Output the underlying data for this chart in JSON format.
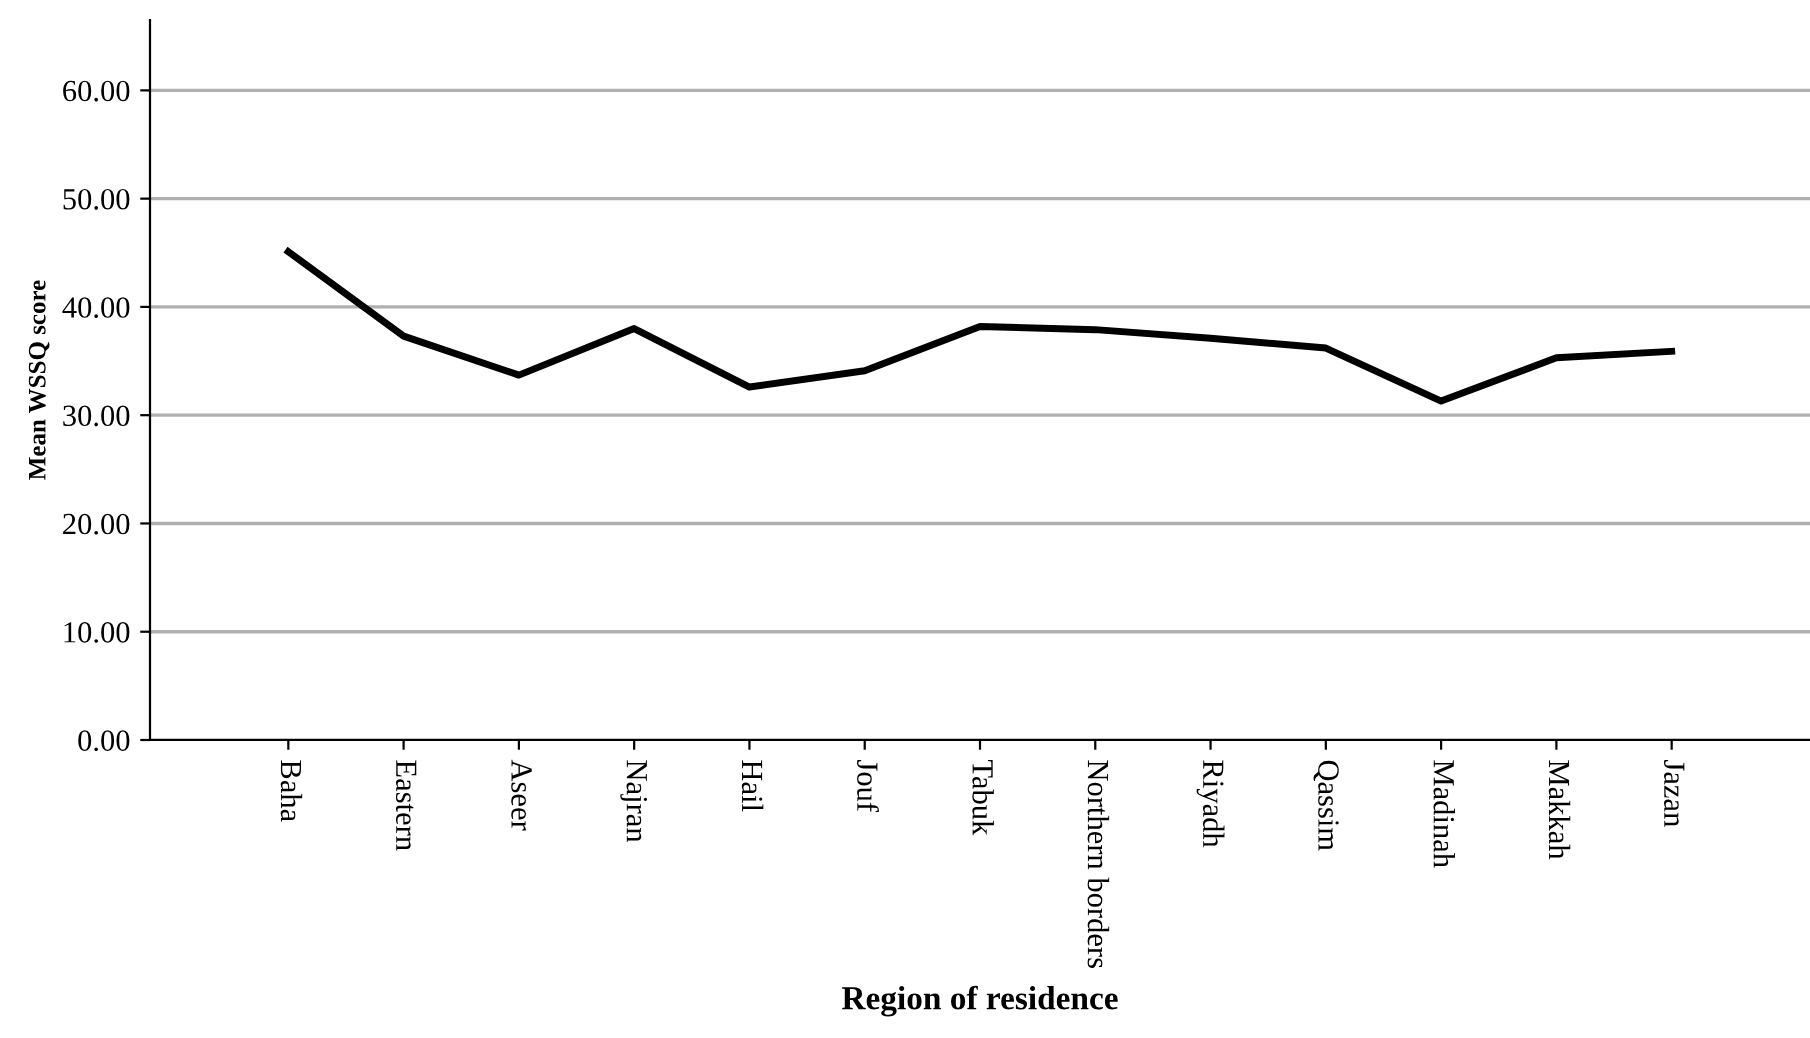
{
  "chart_data": {
    "type": "line",
    "xlabel": "Region of residence",
    "ylabel": "Mean WSSQ score",
    "categories": [
      "Baha",
      "Eastern",
      "Aseer",
      "Najran",
      "Hail",
      "Jouf",
      "Tabuk",
      "Northern borders",
      "Riyadh",
      "Qassim",
      "Madinah",
      "Makkah",
      "Jazan"
    ],
    "values": [
      45.1,
      37.3,
      33.7,
      38.0,
      32.6,
      34.1,
      38.2,
      37.9,
      37.1,
      36.2,
      31.3,
      35.3,
      35.9
    ],
    "color": "#000000",
    "ylim": [
      0,
      66.5
    ],
    "yticks": [
      {
        "value": 0,
        "label": "0.00"
      },
      {
        "value": 10,
        "label": "10.00"
      },
      {
        "value": 20,
        "label": "20.00"
      },
      {
        "value": 30,
        "label": "30.00"
      },
      {
        "value": 40,
        "label": "40.00"
      },
      {
        "value": 50,
        "label": "50.00"
      },
      {
        "value": 60,
        "label": "60.00"
      }
    ],
    "grid": "y",
    "marker": "none",
    "line_style": "solid"
  }
}
